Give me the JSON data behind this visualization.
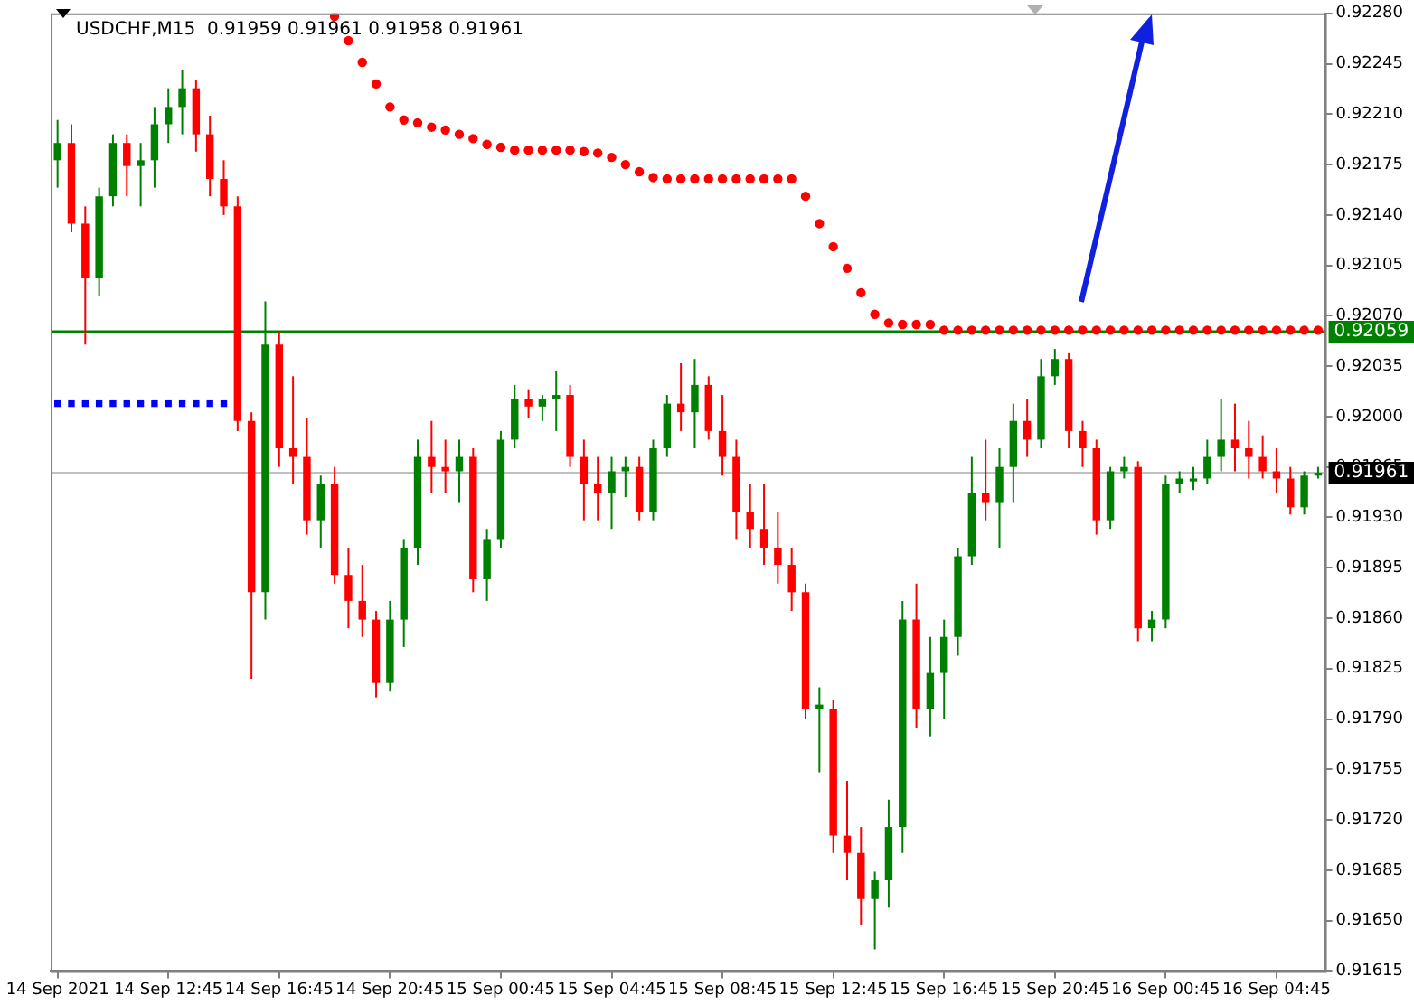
{
  "chart_data": {
    "type": "candlestick",
    "title": "USDCHF,M15  0.91959 0.91961 0.91958 0.91961",
    "categories": [
      "14 Sep 2021",
      null,
      null,
      null,
      null,
      null,
      null,
      null,
      "14 Sep 12:45",
      null,
      null,
      null,
      null,
      null,
      null,
      null,
      "14 Sep 16:45",
      null,
      null,
      null,
      null,
      null,
      null,
      null,
      "14 Sep 20:45",
      null,
      null,
      null,
      null,
      null,
      null,
      null,
      "15 Sep 00:45",
      null,
      null,
      null,
      null,
      null,
      null,
      null,
      "15 Sep 04:45",
      null,
      null,
      null,
      null,
      null,
      null,
      null,
      "15 Sep 08:45",
      null,
      null,
      null,
      null,
      null,
      null,
      null,
      "15 Sep 12:45",
      null,
      null,
      null,
      null,
      null,
      null,
      null,
      "15 Sep 16:45",
      null,
      null,
      null,
      null,
      null,
      null,
      null,
      "15 Sep 20:45",
      null,
      null,
      null,
      null,
      null,
      null,
      null,
      "16 Sep 00:45",
      null,
      null,
      null,
      null,
      null,
      null,
      null,
      "16 Sep 04:45",
      null,
      null,
      null
    ],
    "ohlc": [
      [
        0.92178,
        0.92206,
        0.92159,
        0.9219
      ],
      [
        0.9219,
        0.92203,
        0.92128,
        0.92134
      ],
      [
        0.92134,
        0.92146,
        0.9205,
        0.92096
      ],
      [
        0.92096,
        0.92159,
        0.92084,
        0.92153
      ],
      [
        0.92153,
        0.92196,
        0.92146,
        0.9219
      ],
      [
        0.9219,
        0.92196,
        0.92153,
        0.92174
      ],
      [
        0.92174,
        0.9219,
        0.92146,
        0.92178
      ],
      [
        0.92178,
        0.92215,
        0.92159,
        0.92203
      ],
      [
        0.92203,
        0.92228,
        0.9219,
        0.92215
      ],
      [
        0.92215,
        0.92241,
        0.92196,
        0.92228
      ],
      [
        0.92228,
        0.92234,
        0.92184,
        0.92196
      ],
      [
        0.92196,
        0.92209,
        0.92153,
        0.92165
      ],
      [
        0.92165,
        0.92178,
        0.9214,
        0.92146
      ],
      [
        0.92146,
        0.92153,
        0.9199,
        0.91997
      ],
      [
        0.91997,
        0.92003,
        0.91818,
        0.91878
      ],
      [
        0.91878,
        0.9208,
        0.91859,
        0.9205
      ],
      [
        0.9205,
        0.92059,
        0.91965,
        0.91978
      ],
      [
        0.91978,
        0.92028,
        0.91953,
        0.91972
      ],
      [
        0.91972,
        0.91999,
        0.91918,
        0.91928
      ],
      [
        0.91928,
        0.91959,
        0.91909,
        0.91953
      ],
      [
        0.91953,
        0.91965,
        0.91884,
        0.9189
      ],
      [
        0.9189,
        0.91909,
        0.91853,
        0.91872
      ],
      [
        0.91872,
        0.91897,
        0.91847,
        0.91859
      ],
      [
        0.91859,
        0.91865,
        0.91805,
        0.91815
      ],
      [
        0.91815,
        0.91872,
        0.91809,
        0.91859
      ],
      [
        0.91859,
        0.91915,
        0.9184,
        0.91909
      ],
      [
        0.91909,
        0.91984,
        0.91897,
        0.91972
      ],
      [
        0.91972,
        0.91997,
        0.91947,
        0.91965
      ],
      [
        0.91965,
        0.91984,
        0.91947,
        0.91962
      ],
      [
        0.91962,
        0.91984,
        0.9194,
        0.91972
      ],
      [
        0.91972,
        0.91978,
        0.91878,
        0.91887
      ],
      [
        0.91887,
        0.91922,
        0.91872,
        0.91915
      ],
      [
        0.91915,
        0.9199,
        0.91909,
        0.91984
      ],
      [
        0.91984,
        0.92022,
        0.91978,
        0.92012
      ],
      [
        0.92012,
        0.92019,
        0.91999,
        0.92007
      ],
      [
        0.92007,
        0.92015,
        0.91997,
        0.92012
      ],
      [
        0.92012,
        0.92032,
        0.9199,
        0.92015
      ],
      [
        0.92015,
        0.92022,
        0.91965,
        0.91972
      ],
      [
        0.91972,
        0.91984,
        0.91928,
        0.91953
      ],
      [
        0.91953,
        0.91972,
        0.91928,
        0.91947
      ],
      [
        0.91947,
        0.91972,
        0.91922,
        0.91962
      ],
      [
        0.91962,
        0.91972,
        0.91944,
        0.91965
      ],
      [
        0.91965,
        0.91972,
        0.91928,
        0.91934
      ],
      [
        0.91934,
        0.91984,
        0.91928,
        0.91978
      ],
      [
        0.91978,
        0.92015,
        0.91972,
        0.92009
      ],
      [
        0.92009,
        0.92037,
        0.9199,
        0.92003
      ],
      [
        0.92003,
        0.9204,
        0.91978,
        0.92022
      ],
      [
        0.92022,
        0.92028,
        0.91984,
        0.9199
      ],
      [
        0.9199,
        0.92015,
        0.91959,
        0.91972
      ],
      [
        0.91972,
        0.91984,
        0.91915,
        0.91934
      ],
      [
        0.91934,
        0.91953,
        0.91909,
        0.91922
      ],
      [
        0.91922,
        0.91953,
        0.91897,
        0.91909
      ],
      [
        0.91909,
        0.91934,
        0.91884,
        0.91897
      ],
      [
        0.91897,
        0.91909,
        0.91865,
        0.91878
      ],
      [
        0.91878,
        0.91884,
        0.9179,
        0.91797
      ],
      [
        0.91797,
        0.91812,
        0.91753,
        0.918
      ],
      [
        0.91797,
        0.91803,
        0.91697,
        0.91709
      ],
      [
        0.91709,
        0.91747,
        0.91678,
        0.91697
      ],
      [
        0.91697,
        0.91715,
        0.91647,
        0.91665
      ],
      [
        0.91665,
        0.91684,
        0.9163,
        0.91678
      ],
      [
        0.91678,
        0.91734,
        0.91659,
        0.91715
      ],
      [
        0.91715,
        0.91872,
        0.91697,
        0.91859
      ],
      [
        0.91859,
        0.91884,
        0.91784,
        0.91797
      ],
      [
        0.91797,
        0.91847,
        0.91778,
        0.91822
      ],
      [
        0.91822,
        0.91859,
        0.9179,
        0.91847
      ],
      [
        0.91847,
        0.91909,
        0.91834,
        0.91903
      ],
      [
        0.91903,
        0.91972,
        0.91897,
        0.91947
      ],
      [
        0.91947,
        0.91984,
        0.91928,
        0.9194
      ],
      [
        0.9194,
        0.91978,
        0.91909,
        0.91965
      ],
      [
        0.91965,
        0.92009,
        0.9194,
        0.91997
      ],
      [
        0.91997,
        0.92012,
        0.91972,
        0.91984
      ],
      [
        0.91984,
        0.9204,
        0.91978,
        0.92028
      ],
      [
        0.92028,
        0.92047,
        0.92022,
        0.9204
      ],
      [
        0.9204,
        0.92044,
        0.91978,
        0.9199
      ],
      [
        0.9199,
        0.91997,
        0.91965,
        0.91978
      ],
      [
        0.91978,
        0.91984,
        0.91918,
        0.91928
      ],
      [
        0.91928,
        0.91965,
        0.91922,
        0.91962
      ],
      [
        0.91962,
        0.91972,
        0.91957,
        0.91965
      ],
      [
        0.91965,
        0.91969,
        0.91844,
        0.91853
      ],
      [
        0.91853,
        0.91865,
        0.91844,
        0.91859
      ],
      [
        0.91859,
        0.91959,
        0.91853,
        0.91953
      ],
      [
        0.91953,
        0.91962,
        0.91947,
        0.91957
      ],
      [
        0.91955,
        0.91965,
        0.91949,
        0.91957
      ],
      [
        0.91957,
        0.91984,
        0.91953,
        0.91972
      ],
      [
        0.91972,
        0.92012,
        0.91962,
        0.91984
      ],
      [
        0.91984,
        0.92009,
        0.91962,
        0.91978
      ],
      [
        0.91978,
        0.91997,
        0.91957,
        0.91972
      ],
      [
        0.91972,
        0.91987,
        0.91957,
        0.91962
      ],
      [
        0.91962,
        0.91978,
        0.91947,
        0.91957
      ],
      [
        0.91957,
        0.91965,
        0.91932,
        0.91937
      ],
      [
        0.91937,
        0.91962,
        0.91932,
        0.91959
      ],
      [
        0.91959,
        0.91965,
        0.91957,
        0.91961
      ]
    ],
    "colors": [
      "#008000",
      "#ff0000",
      "#ff0000",
      "#008000",
      "#008000",
      "#ff0000",
      "#008000",
      "#008000",
      "#008000",
      "#008000",
      "#ff0000",
      "#ff0000",
      "#ff0000",
      "#ff0000",
      "#ff0000",
      "#008000",
      "#ff0000",
      "#ff0000",
      "#ff0000",
      "#008000",
      "#ff0000",
      "#ff0000",
      "#ff0000",
      "#ff0000",
      "#008000",
      "#008000",
      "#008000",
      "#ff0000",
      "#ff0000",
      "#008000",
      "#ff0000",
      "#008000",
      "#008000",
      "#008000",
      "#ff0000",
      "#008000",
      "#008000",
      "#ff0000",
      "#ff0000",
      "#ff0000",
      "#008000",
      "#008000",
      "#ff0000",
      "#008000",
      "#008000",
      "#ff0000",
      "#008000",
      "#ff0000",
      "#ff0000",
      "#ff0000",
      "#ff0000",
      "#ff0000",
      "#ff0000",
      "#ff0000",
      "#ff0000",
      "#008000",
      "#ff0000",
      "#ff0000",
      "#ff0000",
      "#008000",
      "#008000",
      "#008000",
      "#ff0000",
      "#008000",
      "#008000",
      "#008000",
      "#008000",
      "#ff0000",
      "#008000",
      "#008000",
      "#ff0000",
      "#008000",
      "#008000",
      "#ff0000",
      "#ff0000",
      "#ff0000",
      "#008000",
      "#008000",
      "#ff0000",
      "#008000",
      "#008000",
      "#008000",
      "#008000",
      "#008000",
      "#008000",
      "#ff0000",
      "#ff0000",
      "#ff0000",
      "#ff0000",
      "#ff0000",
      "#008000",
      "#008000"
    ],
    "series": [
      {
        "type": "scatter",
        "color": "#ff0000",
        "marker": "circle",
        "values": [
          null,
          null,
          null,
          null,
          null,
          null,
          null,
          null,
          null,
          null,
          null,
          null,
          null,
          null,
          null,
          null,
          null,
          null,
          null,
          null,
          0.92278,
          0.92261,
          0.92246,
          0.92231,
          0.92215,
          0.92206,
          0.92204,
          0.92201,
          0.92199,
          0.92196,
          0.92193,
          0.92189,
          0.92187,
          0.92185,
          0.92185,
          0.92185,
          0.92185,
          0.92185,
          0.92184,
          0.92183,
          0.9218,
          0.92175,
          0.9217,
          0.92166,
          0.92165,
          0.92165,
          0.92165,
          0.92165,
          0.92165,
          0.92165,
          0.92165,
          0.92165,
          0.92165,
          0.92165,
          0.92153,
          0.92134,
          0.92118,
          0.92103,
          0.92086,
          0.92071,
          0.92065,
          0.92064,
          0.92064,
          0.92064,
          0.9206,
          0.9206,
          0.9206,
          0.9206,
          0.9206,
          0.9206,
          0.9206,
          0.9206,
          0.9206,
          0.9206,
          0.9206,
          0.9206,
          0.9206,
          0.9206,
          0.9206,
          0.9206,
          0.9206,
          0.9206,
          0.9206,
          0.9206,
          0.9206,
          0.9206,
          0.9206,
          0.9206,
          0.9206,
          0.9206,
          0.9206,
          0.9206
        ]
      },
      {
        "type": "scatter",
        "color": "#0000ff",
        "marker": "square",
        "values": [
          0.92009,
          0.92009,
          0.92009,
          0.92009,
          0.92009,
          0.92009,
          0.92009,
          0.92009,
          0.92009,
          0.92009,
          0.92009,
          0.92009,
          0.92009,
          null,
          null,
          null,
          null,
          null,
          null,
          null,
          null,
          null,
          null,
          null,
          null,
          null,
          null,
          null,
          null,
          null,
          null,
          null,
          null,
          null,
          null,
          null,
          null,
          null,
          null,
          null,
          null,
          null,
          null,
          null,
          null,
          null,
          null,
          null,
          null,
          null,
          null,
          null,
          null,
          null,
          null,
          null,
          null,
          null,
          null,
          null,
          null,
          null,
          null,
          null,
          null,
          null,
          null,
          null,
          null,
          null,
          null,
          null,
          null,
          null,
          null,
          null,
          null,
          null,
          null,
          null,
          null,
          null,
          null,
          null,
          null,
          null,
          null,
          null,
          null,
          null,
          null,
          null
        ]
      }
    ],
    "ref_lines": [
      {
        "axis": "y",
        "value": 0.92059,
        "label": "0.92059",
        "color": "#008000"
      },
      {
        "axis": "y",
        "value": 0.91961,
        "label": "0.91961",
        "color": "#c0c0c0"
      }
    ],
    "ylim": [
      0.91615,
      0.9228
    ],
    "yticks": [
      {
        "value": 0.9228,
        "label": "0.92280"
      },
      0.92245,
      {
        "value": 0.9221,
        "label": "0.92210"
      },
      0.92175,
      {
        "value": 0.9214,
        "label": "0.92140"
      },
      0.92105,
      {
        "value": 0.9207,
        "label": "0.92070"
      },
      0.92035,
      {
        "value": 0.92,
        "label": "0.92000"
      },
      0.91965,
      {
        "value": 0.9193,
        "label": "0.91930"
      },
      0.91895,
      {
        "value": 0.9186,
        "label": "0.91860"
      },
      0.91825,
      {
        "value": 0.9179,
        "label": "0.91790"
      },
      0.91755,
      {
        "value": 0.9172,
        "label": "0.91720"
      },
      0.91685,
      {
        "value": 0.9165,
        "label": "0.91650"
      },
      0.91615
    ],
    "grid": false,
    "legend": false
  }
}
